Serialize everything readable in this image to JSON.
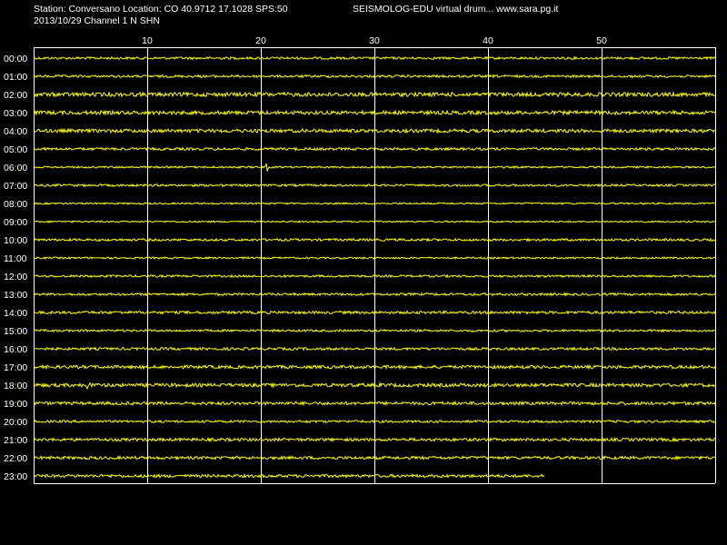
{
  "header": {
    "station_line": "Station: Conversano Location: CO 40.9712 17.1028 SPS:50",
    "date_line": "2013/10/29  Channel 1 N SHN",
    "title": "SEISMOLOG-EDU virtual drum... www.sara.pg.it"
  },
  "chart_data": {
    "type": "line",
    "title": "SEISMOLOG-EDU virtual drum... www.sara.pg.it",
    "xlabel": "",
    "ylabel": "",
    "xlim": [
      0,
      60
    ],
    "x_ticks": [
      10,
      20,
      30,
      40,
      50
    ],
    "x_tick_labels": [
      "10",
      "20",
      "30",
      "40",
      "50"
    ],
    "rows": [
      "00:00",
      "01:00",
      "02:00",
      "03:00",
      "04:00",
      "05:00",
      "06:00",
      "07:00",
      "08:00",
      "09:00",
      "10:00",
      "11:00",
      "12:00",
      "13:00",
      "14:00",
      "15:00",
      "16:00",
      "17:00",
      "18:00",
      "19:00",
      "20:00",
      "21:00",
      "22:00",
      "23:00"
    ],
    "row_end_minute": [
      60,
      60,
      60,
      60,
      60,
      60,
      60,
      60,
      60,
      60,
      60,
      60,
      60,
      60,
      60,
      60,
      60,
      60,
      60,
      60,
      60,
      60,
      60,
      45
    ],
    "noise_amplitude": [
      1.3,
      1.3,
      2.2,
      2.0,
      1.9,
      1.4,
      1.0,
      1.2,
      0.9,
      0.9,
      1.3,
      1.0,
      1.2,
      1.3,
      1.5,
      1.2,
      1.4,
      1.7,
      1.9,
      1.7,
      1.3,
      1.6,
      1.6,
      1.6
    ],
    "events": [
      {
        "row": "06:00",
        "minute": 20.6,
        "amplitude": 5
      },
      {
        "row": "18:00",
        "minute": 4.6,
        "amplitude": 5
      },
      {
        "row": "18:00",
        "minute": 5.1,
        "amplitude": 4
      },
      {
        "row": "18:00",
        "minute": 30.6,
        "amplitude": 3
      }
    ],
    "grid": true,
    "trace_color": "#ffff00",
    "grid_color": "#ffffff",
    "background_color": "#000000"
  }
}
